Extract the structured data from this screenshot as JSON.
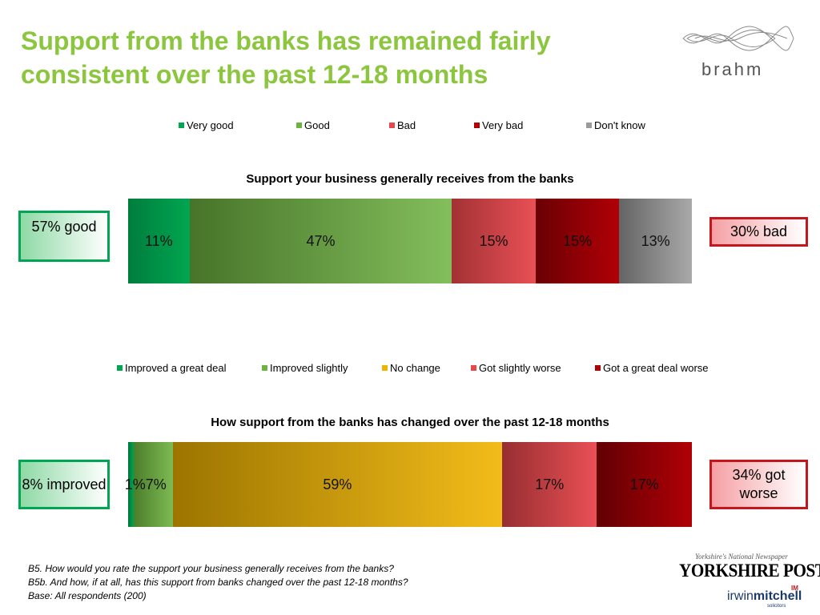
{
  "title": "Support from the banks has remained fairly consistent over the past 12-18 months",
  "brand": "brahm",
  "chart_data": [
    {
      "type": "bar",
      "title": "Support your business generally receives from the banks",
      "stacked": true,
      "orientation": "horizontal",
      "series": [
        {
          "name": "Very good",
          "values": [
            11
          ],
          "label": "11%",
          "color": "#00a651"
        },
        {
          "name": "Good",
          "values": [
            47
          ],
          "label": "47%",
          "color": "#6db33f"
        },
        {
          "name": "Bad",
          "values": [
            15
          ],
          "label": "15%",
          "color": "#e8474c"
        },
        {
          "name": "Very bad",
          "values": [
            15
          ],
          "label": "15%",
          "color": "#b00006"
        },
        {
          "name": "Don't know",
          "values": [
            13
          ],
          "label": "13%",
          "color": "#9a9a9a"
        }
      ],
      "xlim": [
        0,
        101
      ]
    },
    {
      "type": "bar",
      "title": "How support from the banks has changed over the past 12-18 months",
      "stacked": true,
      "orientation": "horizontal",
      "series": [
        {
          "name": "Improved a great deal",
          "values": [
            1
          ],
          "label": "1%",
          "color": "#00a651"
        },
        {
          "name": "Improved slightly",
          "values": [
            7
          ],
          "label": "7%",
          "color": "#6db33f"
        },
        {
          "name": "No change",
          "values": [
            59
          ],
          "label": "59%",
          "color": "#f0b400"
        },
        {
          "name": "Got slightly worse",
          "values": [
            17
          ],
          "label": "17%",
          "color": "#e8474c"
        },
        {
          "name": "Got a great deal worse",
          "values": [
            17
          ],
          "label": "17%",
          "color": "#b00006"
        }
      ],
      "xlim": [
        0,
        101
      ]
    }
  ],
  "callouts": {
    "good1": "57% good",
    "bad1": "30% bad",
    "good2": "8% improved",
    "bad2": "34% got worse"
  },
  "footnotes": [
    "B5. How would you rate the support your business generally receives from the banks?",
    "B5b. And how, if at all, has this support from banks changed over the past 12-18 months?",
    "Base: All respondents (200)"
  ],
  "logos": {
    "yp_tagline": "Yorkshire's National Newspaper",
    "yp": "YORKSHIRE POST",
    "im_a": "irwin",
    "im_b": "mitchell",
    "im_badge": "IM",
    "im_sub": "solicitors"
  }
}
